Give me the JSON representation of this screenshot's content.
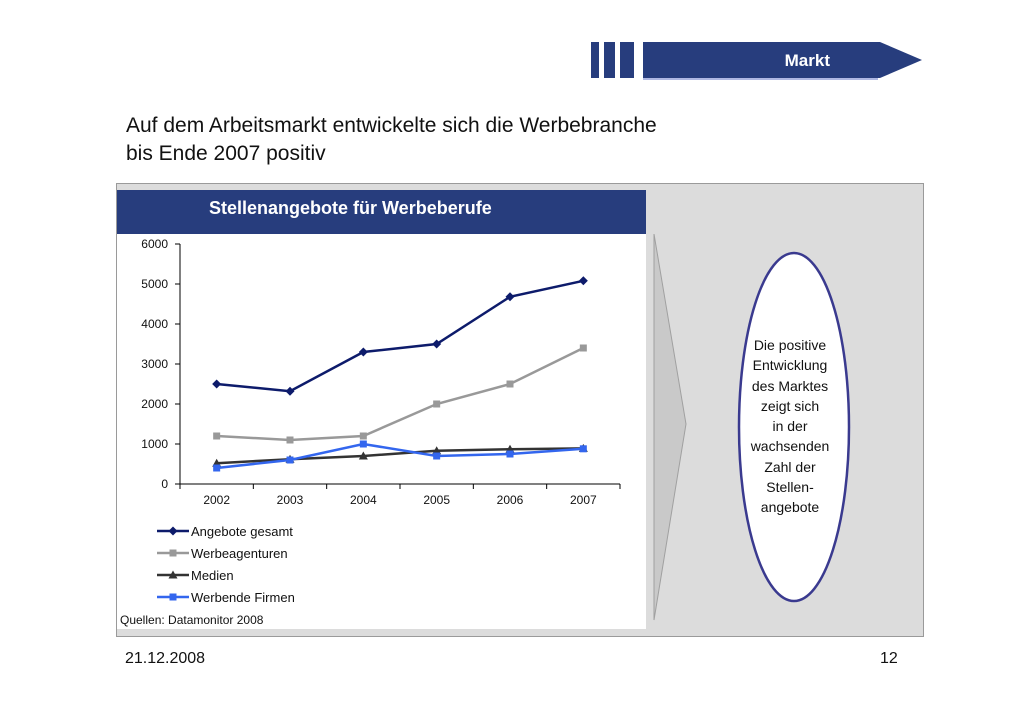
{
  "header": {
    "section_label": "Markt",
    "brand_color": "#273d7d",
    "accent_color": "#3a4fb0"
  },
  "heading": {
    "line1": "Auf dem Arbeitsmarkt entwickelte sich die Werbebranche",
    "line2": "bis Ende 2007 positiv"
  },
  "source": "Quellen: Datamonitor 2008",
  "callout": {
    "lines": [
      "Die positive",
      "Entwicklung",
      "des Marktes",
      "zeigt sich",
      "in der",
      "wachsenden",
      "Zahl der",
      "Stellen-",
      "angebote"
    ],
    "ring_color": "#3a3a8f"
  },
  "footer": {
    "date": "21.12.2008",
    "page": "12"
  },
  "chart_data": {
    "type": "line",
    "title": "Stellenangebote für Werbeberufe",
    "xlabel": "",
    "ylabel": "",
    "categories": [
      "2002",
      "2003",
      "2004",
      "2005",
      "2006",
      "2007"
    ],
    "ylim": [
      0,
      6000
    ],
    "yticks": [
      0,
      1000,
      2000,
      3000,
      4000,
      5000,
      6000
    ],
    "grid": false,
    "legend_position": "bottom",
    "series": [
      {
        "name": "Angebote gesamt",
        "color": "#0d1b6b",
        "marker": "diamond",
        "values": [
          2500,
          2320,
          3300,
          3500,
          4680,
          5080
        ]
      },
      {
        "name": "Werbeagenturen",
        "color": "#999999",
        "marker": "square",
        "values": [
          1200,
          1100,
          1200,
          2000,
          2500,
          3400
        ]
      },
      {
        "name": "Medien",
        "color": "#333333",
        "marker": "triangle",
        "values": [
          520,
          620,
          700,
          830,
          870,
          890
        ]
      },
      {
        "name": "Werbende Firmen",
        "color": "#3366ee",
        "marker": "square",
        "values": [
          400,
          600,
          1000,
          700,
          750,
          880
        ]
      }
    ]
  }
}
